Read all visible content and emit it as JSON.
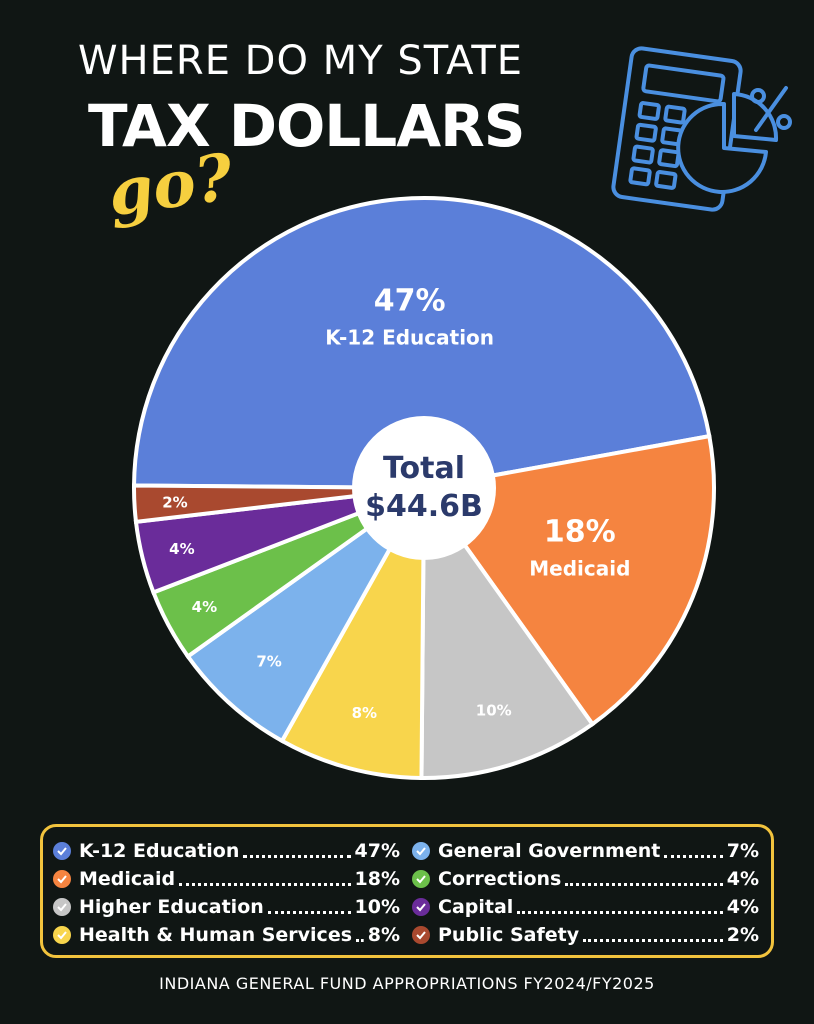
{
  "header": {
    "title_line1": "WHERE DO MY STATE",
    "title_line2": "TAX DOLLARS",
    "title_go": "go?"
  },
  "icons": {
    "calculator": "calculator-pie-icon",
    "check": "check-icon"
  },
  "chart_data": {
    "type": "pie",
    "center_label": "Total",
    "center_value": "$44.6B",
    "slices": [
      {
        "name": "K-12 Education",
        "value": 47,
        "label": "47%",
        "color": "#5b7fd9"
      },
      {
        "name": "Medicaid",
        "value": 18,
        "label": "18%",
        "color": "#f58440"
      },
      {
        "name": "Higher Education",
        "value": 10,
        "label": "10%",
        "color": "#c6c6c6"
      },
      {
        "name": "Health & Human Services",
        "value": 8,
        "label": "8%",
        "color": "#f8d54c"
      },
      {
        "name": "General Government",
        "value": 7,
        "label": "7%",
        "color": "#7cb2ec"
      },
      {
        "name": "Corrections",
        "value": 4,
        "label": "4%",
        "color": "#6cc04a"
      },
      {
        "name": "Capital",
        "value": 4,
        "label": "4%",
        "color": "#6a2c9a"
      },
      {
        "name": "Public Safety",
        "value": 2,
        "label": "2%",
        "color": "#a9492f"
      }
    ]
  },
  "legend": {
    "left": [
      {
        "name": "K-12 Education",
        "value": "47%",
        "color": "#5b7fd9"
      },
      {
        "name": "Medicaid",
        "value": "18%",
        "color": "#f58440"
      },
      {
        "name": "Higher Education",
        "value": "10%",
        "color": "#c6c6c6"
      },
      {
        "name": "Health & Human Services",
        "value": "8%",
        "color": "#f8d54c"
      }
    ],
    "right": [
      {
        "name": "General Government",
        "value": "7%",
        "color": "#7cb2ec"
      },
      {
        "name": "Corrections",
        "value": "4%",
        "color": "#6cc04a"
      },
      {
        "name": "Capital",
        "value": "4%",
        "color": "#6a2c9a"
      },
      {
        "name": "Public Safety",
        "value": "2%",
        "color": "#a9492f"
      }
    ]
  },
  "footer": {
    "source": "INDIANA GENERAL FUND APPROPRIATIONS FY2024/FY2025"
  }
}
